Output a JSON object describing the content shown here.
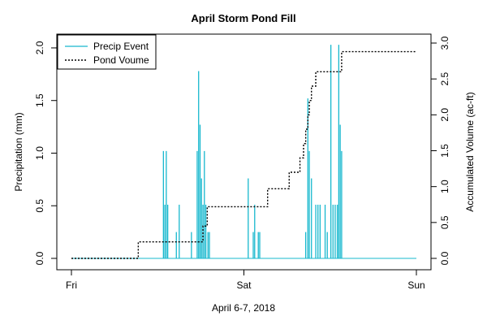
{
  "chart_data": {
    "type": "bar",
    "title": "April Storm Pond Fill",
    "xlabel": "April 6-7, 2018",
    "ylabel": "Precipitation (mm)",
    "y2label": "Accumulated Volume (ac-ft)",
    "xlim": [
      0,
      48
    ],
    "ylim": [
      0,
      2.1
    ],
    "y2lim": [
      0,
      3.0
    ],
    "x_ticks": [
      {
        "x": 0,
        "label": "Fri"
      },
      {
        "x": 24,
        "label": "Sat"
      },
      {
        "x": 48,
        "label": "Sun"
      }
    ],
    "y_ticks": [
      "0.0",
      "0.5",
      "1.0",
      "1.5",
      "2.0"
    ],
    "y2_ticks": [
      "0.0",
      "0.5",
      "1.0",
      "1.5",
      "2.0",
      "2.5",
      "3.0"
    ],
    "legend": {
      "position": "top-left",
      "entries": [
        "Precip Event",
        "Pond Voume"
      ]
    },
    "grid": false,
    "colors": {
      "precip": "#17b8ce",
      "volume": "#000000"
    },
    "series": [
      {
        "name": "Precip Event",
        "type": "bar",
        "x": [
          12.8,
          13.0,
          13.2,
          13.4,
          14.6,
          15.0,
          16.7,
          17.5,
          17.7,
          17.9,
          18.1,
          18.3,
          18.5,
          18.7,
          19.0,
          19.2,
          24.6,
          25.3,
          25.5,
          26.0,
          26.2,
          32.6,
          32.9,
          33.1,
          33.4,
          34.0,
          34.3,
          34.6,
          35.3,
          35.6,
          36.1,
          36.4,
          36.7,
          37.0,
          37.2,
          37.4,
          37.6
        ],
        "values": [
          1.02,
          0.51,
          1.02,
          0.51,
          0.25,
          0.51,
          0.25,
          1.02,
          1.78,
          1.27,
          0.76,
          0.51,
          1.02,
          0.51,
          0.25,
          0.25,
          0.76,
          0.25,
          0.51,
          0.25,
          0.25,
          0.25,
          1.52,
          1.02,
          0.76,
          0.51,
          0.51,
          0.51,
          0.51,
          0.25,
          2.03,
          0.51,
          0.51,
          0.51,
          2.03,
          1.27,
          1.02
        ]
      },
      {
        "name": "Pond Voume",
        "type": "step",
        "x": [
          0,
          9.3,
          14.6,
          18.3,
          18.9,
          24.0,
          27.3,
          30.3,
          31.8,
          32.3,
          32.6,
          32.9,
          33.1,
          33.4,
          33.7,
          34.0,
          34.4,
          35.4,
          36.1,
          37.6,
          48
        ],
        "values": [
          0,
          0.23,
          0.23,
          0.45,
          0.72,
          0.72,
          0.97,
          1.2,
          1.4,
          1.6,
          1.8,
          2.0,
          2.2,
          2.4,
          2.4,
          2.6,
          2.6,
          2.6,
          2.6,
          2.88,
          2.88
        ]
      }
    ]
  }
}
